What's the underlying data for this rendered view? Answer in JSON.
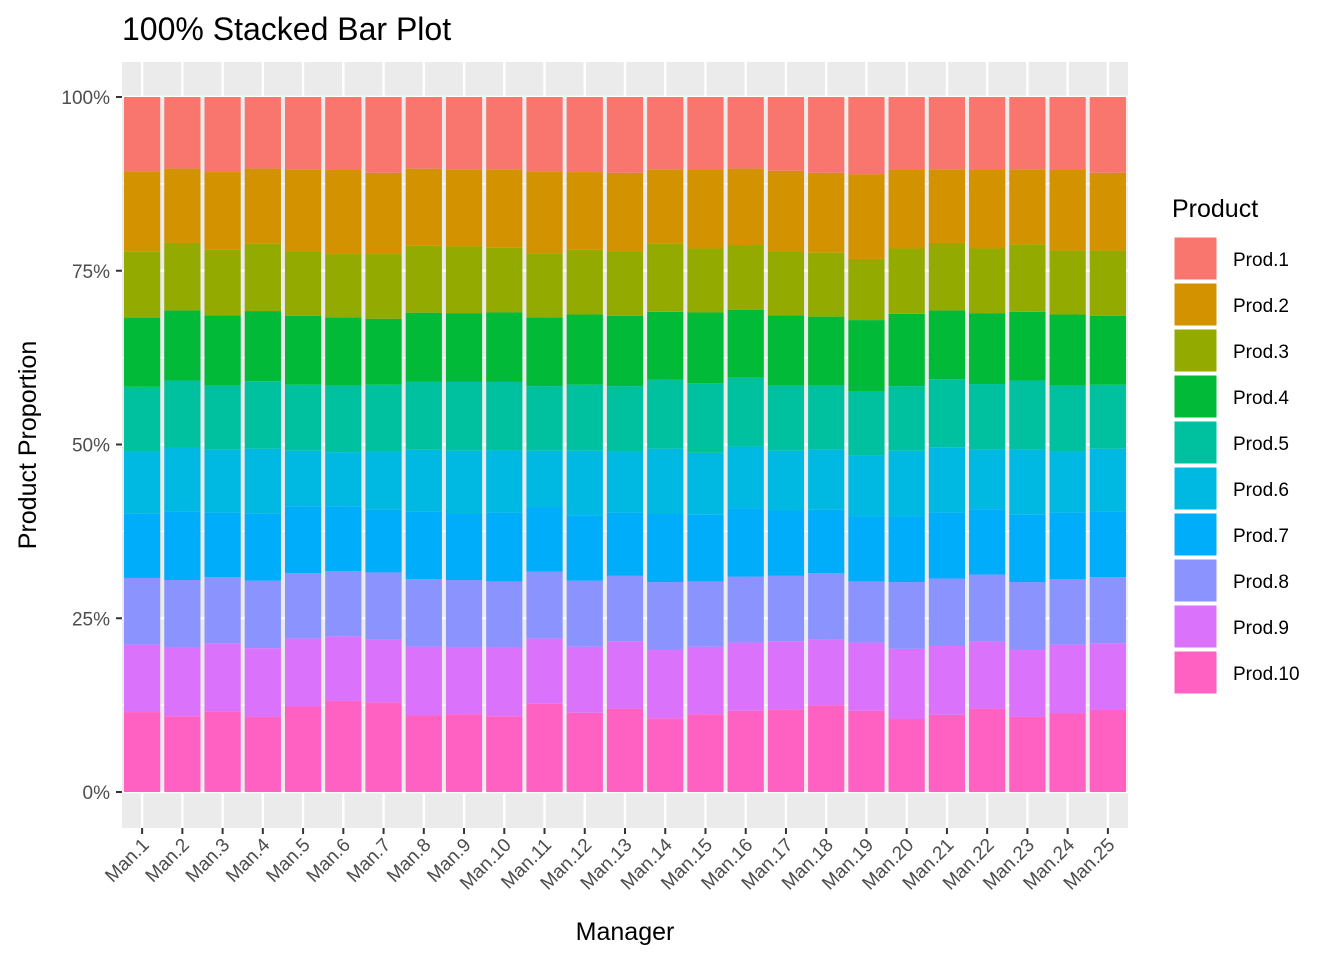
{
  "chart_data": {
    "type": "bar",
    "stacked": "percent",
    "title": "100% Stacked Bar Plot",
    "xlabel": "Manager",
    "ylabel": "Product Proportion",
    "ylim": [
      0,
      1
    ],
    "y_ticks": [
      {
        "value": 0,
        "label": "0%"
      },
      {
        "value": 0.25,
        "label": "25%"
      },
      {
        "value": 0.5,
        "label": "50%"
      },
      {
        "value": 0.75,
        "label": "75%"
      },
      {
        "value": 1,
        "label": "100%"
      }
    ],
    "grid": true,
    "legend_title": "Product",
    "legend_position": "right",
    "categories": [
      "Man.1",
      "Man.2",
      "Man.3",
      "Man.4",
      "Man.5",
      "Man.6",
      "Man.7",
      "Man.8",
      "Man.9",
      "Man.10",
      "Man.11",
      "Man.12",
      "Man.13",
      "Man.14",
      "Man.15",
      "Man.16",
      "Man.17",
      "Man.18",
      "Man.19",
      "Man.20",
      "Man.21",
      "Man.22",
      "Man.23",
      "Man.24",
      "Man.25"
    ],
    "series": [
      {
        "name": "Prod.1",
        "color": "#F8766D",
        "values": [
          0.107,
          0.103,
          0.108,
          0.103,
          0.104,
          0.105,
          0.109,
          0.103,
          0.104,
          0.104,
          0.107,
          0.108,
          0.109,
          0.104,
          0.105,
          0.103,
          0.106,
          0.109,
          0.111,
          0.105,
          0.104,
          0.105,
          0.104,
          0.105,
          0.109
        ]
      },
      {
        "name": "Prod.2",
        "color": "#D39200",
        "values": [
          0.115,
          0.107,
          0.112,
          0.108,
          0.119,
          0.121,
          0.117,
          0.111,
          0.111,
          0.113,
          0.118,
          0.112,
          0.114,
          0.107,
          0.113,
          0.11,
          0.117,
          0.115,
          0.122,
          0.113,
          0.106,
          0.113,
          0.108,
          0.116,
          0.112
        ]
      },
      {
        "name": "Prod.3",
        "color": "#93AA00",
        "values": [
          0.096,
          0.097,
          0.094,
          0.097,
          0.092,
          0.091,
          0.093,
          0.096,
          0.096,
          0.093,
          0.092,
          0.093,
          0.092,
          0.098,
          0.092,
          0.093,
          0.091,
          0.092,
          0.088,
          0.094,
          0.097,
          0.093,
          0.097,
          0.092,
          0.094
        ]
      },
      {
        "name": "Prod.4",
        "color": "#00BA38",
        "values": [
          0.099,
          0.101,
          0.101,
          0.101,
          0.099,
          0.098,
          0.095,
          0.099,
          0.099,
          0.1,
          0.099,
          0.101,
          0.101,
          0.098,
          0.102,
          0.098,
          0.101,
          0.099,
          0.102,
          0.104,
          0.099,
          0.102,
          0.099,
          0.102,
          0.099
        ]
      },
      {
        "name": "Prod.5",
        "color": "#00C19F",
        "values": [
          0.093,
          0.097,
          0.092,
          0.097,
          0.095,
          0.096,
          0.096,
          0.098,
          0.099,
          0.098,
          0.093,
          0.095,
          0.094,
          0.099,
          0.1,
          0.099,
          0.094,
          0.092,
          0.093,
          0.093,
          0.098,
          0.094,
          0.099,
          0.095,
          0.092
        ]
      },
      {
        "name": "Prod.6",
        "color": "#00B9E3",
        "values": [
          0.089,
          0.092,
          0.091,
          0.093,
          0.08,
          0.078,
          0.084,
          0.089,
          0.091,
          0.09,
          0.081,
          0.093,
          0.088,
          0.094,
          0.089,
          0.089,
          0.086,
          0.087,
          0.087,
          0.094,
          0.094,
          0.086,
          0.094,
          0.088,
          0.091
        ]
      },
      {
        "name": "Prod.7",
        "color": "#00ADFA",
        "values": [
          0.093,
          0.098,
          0.093,
          0.097,
          0.096,
          0.093,
          0.09,
          0.097,
          0.095,
          0.099,
          0.093,
          0.094,
          0.091,
          0.098,
          0.096,
          0.098,
          0.094,
          0.091,
          0.094,
          0.095,
          0.095,
          0.094,
          0.097,
          0.096,
          0.094
        ]
      },
      {
        "name": "Prod.8",
        "color": "#8B93FF",
        "values": [
          0.096,
          0.097,
          0.095,
          0.097,
          0.094,
          0.094,
          0.096,
          0.097,
          0.097,
          0.095,
          0.096,
          0.095,
          0.094,
          0.097,
          0.094,
          0.095,
          0.094,
          0.095,
          0.088,
          0.096,
          0.097,
          0.097,
          0.097,
          0.094,
          0.095
        ]
      },
      {
        "name": "Prod.9",
        "color": "#DB72FB",
        "values": [
          0.097,
          0.099,
          0.098,
          0.099,
          0.098,
          0.093,
          0.091,
          0.099,
          0.096,
          0.099,
          0.094,
          0.095,
          0.097,
          0.099,
          0.097,
          0.098,
          0.098,
          0.095,
          0.098,
          0.101,
          0.099,
          0.096,
          0.097,
          0.099,
          0.096
        ]
      },
      {
        "name": "Prod.10",
        "color": "#FF61C3",
        "values": [
          0.115,
          0.109,
          0.116,
          0.108,
          0.123,
          0.131,
          0.129,
          0.11,
          0.112,
          0.109,
          0.127,
          0.114,
          0.12,
          0.106,
          0.112,
          0.117,
          0.119,
          0.125,
          0.117,
          0.105,
          0.111,
          0.12,
          0.108,
          0.113,
          0.118
        ]
      }
    ]
  }
}
